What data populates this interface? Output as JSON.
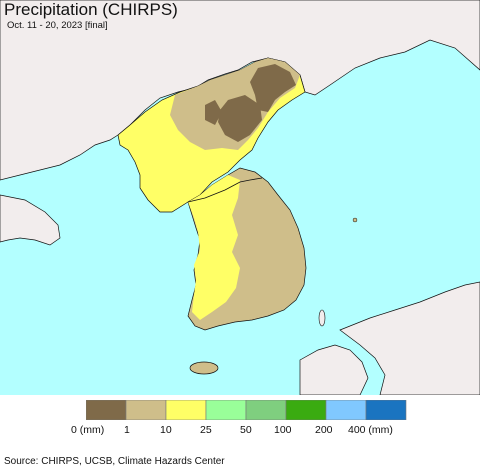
{
  "title": "Precipitation (CHIRPS)",
  "subtitle": "Oct. 11 - 20, 2023 [final]",
  "colors": {
    "sea": "#b3ffff",
    "foreign_land": "#f2eded",
    "border_line": "#111111"
  },
  "legend": {
    "bins": [
      {
        "color": "#7f6a49"
      },
      {
        "color": "#cfbe8a"
      },
      {
        "color": "#ffff66"
      },
      {
        "color": "#99ff99"
      },
      {
        "color": "#7fcf7f"
      },
      {
        "color": "#3aab11"
      },
      {
        "color": "#80c8ff"
      },
      {
        "color": "#1a74c0"
      }
    ],
    "ticks": [
      "0 (mm)",
      "1",
      "10",
      "25",
      "50",
      "100",
      "200",
      "400 (mm)"
    ]
  },
  "footer": "Source: CHIRPS, UCSB, Climate Hazards Center"
}
